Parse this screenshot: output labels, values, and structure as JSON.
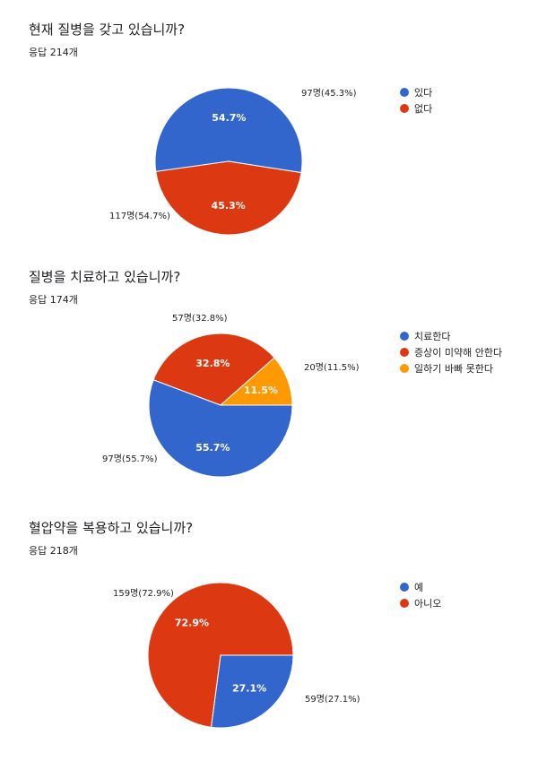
{
  "chart_data": [
    {
      "type": "pie",
      "title": "현재 질병을 갖고 있습니까?",
      "subtitle": "응답 214개",
      "legend_position": "right",
      "categories": [
        "있다",
        "없다"
      ],
      "values": [
        117,
        97
      ],
      "percent_labels": [
        "54.7%",
        "45.3%"
      ],
      "outside_labels": [
        "117명(54.7%)",
        "97명(45.3%)"
      ],
      "colors": [
        "#3366cc",
        "#dc3912"
      ]
    },
    {
      "type": "pie",
      "title": "질병을 치료하고 있습니까?",
      "subtitle": "응답 174개",
      "legend_position": "right",
      "categories": [
        "치료한다",
        "증상이 미약해 안한다",
        "일하기 바빠 못한다"
      ],
      "values": [
        97,
        57,
        20
      ],
      "percent_labels": [
        "55.7%",
        "32.8%",
        "11.5%"
      ],
      "outside_labels": [
        "97명(55.7%)",
        "57명(32.8%)",
        "20명(11.5%)"
      ],
      "colors": [
        "#3366cc",
        "#dc3912",
        "#ff9900"
      ]
    },
    {
      "type": "pie",
      "title": "혈압약을 복용하고 있습니까?",
      "subtitle": "응답 218개",
      "legend_position": "right",
      "categories": [
        "예",
        "아니오"
      ],
      "values": [
        59,
        159
      ],
      "percent_labels": [
        "27.1%",
        "72.9%"
      ],
      "outside_labels": [
        "59명(27.1%)",
        "159명(72.9%)"
      ],
      "colors": [
        "#3366cc",
        "#dc3912"
      ]
    }
  ]
}
